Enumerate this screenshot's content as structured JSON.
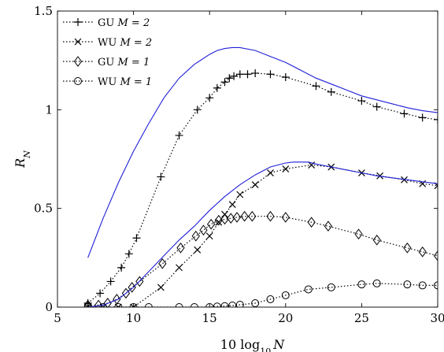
{
  "chart_data": {
    "type": "line",
    "title": "",
    "xlabel": "10 log10 N",
    "ylabel": "R_N",
    "xlim": [
      5,
      30
    ],
    "ylim": [
      0,
      1.5
    ],
    "xticks": [
      5,
      10,
      15,
      20,
      25,
      30
    ],
    "xtick_labels": [
      "5",
      "10",
      "15",
      "20",
      "25",
      "30"
    ],
    "yticks": [
      0,
      0.5,
      1,
      1.5
    ],
    "ytick_labels": [
      "0",
      "0.5",
      "1",
      "1.5"
    ],
    "grid": false,
    "legend_position": "top-left",
    "series": [
      {
        "name": "GU M = 2",
        "legend_label": "GU",
        "legend_math": "M = 2",
        "marker": "plus",
        "line": "dotted",
        "color": "#000000",
        "x": [
          7,
          7.8,
          8.5,
          9.2,
          9.7,
          10.2,
          11.8,
          13,
          14.2,
          15,
          15.5,
          16,
          16.3,
          16.6,
          17,
          17.5,
          18,
          19,
          20,
          22,
          23,
          25,
          26,
          27.8,
          29,
          30
        ],
        "y": [
          0.02,
          0.07,
          0.13,
          0.2,
          0.27,
          0.35,
          0.66,
          0.87,
          1,
          1.06,
          1.11,
          1.14,
          1.16,
          1.17,
          1.18,
          1.18,
          1.185,
          1.18,
          1.165,
          1.12,
          1.09,
          1.045,
          1.015,
          0.98,
          0.96,
          0.95
        ]
      },
      {
        "name": "WU M = 2",
        "legend_label": "WU",
        "legend_math": "M = 2",
        "marker": "cross",
        "line": "dotted",
        "color": "#000000",
        "x": [
          7,
          8,
          9,
          10,
          11.8,
          13,
          14.2,
          15,
          15.6,
          16,
          16.5,
          17,
          18,
          19,
          20,
          21.7,
          23,
          25,
          26.2,
          27.8,
          29,
          30
        ],
        "y": [
          0,
          0,
          0,
          0,
          0.1,
          0.2,
          0.29,
          0.36,
          0.43,
          0.47,
          0.52,
          0.57,
          0.62,
          0.68,
          0.7,
          0.72,
          0.71,
          0.68,
          0.665,
          0.645,
          0.625,
          0.615
        ]
      },
      {
        "name": "GU M = 1",
        "legend_label": "GU",
        "legend_math": "M = 1",
        "marker": "diamond",
        "line": "dotted",
        "color": "#000000",
        "x": [
          7,
          7.7,
          8.3,
          8.9,
          9.5,
          9.9,
          10.4,
          11.9,
          13.1,
          14.1,
          14.6,
          15.1,
          15.6,
          16,
          16.4,
          16.8,
          17.3,
          17.8,
          19,
          20,
          21.7,
          22.8,
          24.8,
          26,
          28,
          29,
          30
        ],
        "y": [
          0.01,
          0.01,
          0.02,
          0.04,
          0.07,
          0.1,
          0.13,
          0.22,
          0.3,
          0.36,
          0.39,
          0.42,
          0.44,
          0.445,
          0.45,
          0.455,
          0.46,
          0.46,
          0.46,
          0.455,
          0.43,
          0.41,
          0.37,
          0.34,
          0.3,
          0.28,
          0.26
        ]
      },
      {
        "name": "WU M = 1",
        "legend_label": "WU",
        "legend_math": "M = 1",
        "marker": "circle",
        "line": "dotted",
        "color": "#000000",
        "x": [
          7,
          8,
          9,
          10,
          11,
          13,
          14,
          15,
          15.5,
          16,
          16.5,
          17,
          18,
          19,
          20,
          21.5,
          23,
          25,
          26,
          28,
          29,
          30
        ],
        "y": [
          0,
          0,
          0,
          0,
          0,
          0,
          0,
          0,
          0.003,
          0.005,
          0.008,
          0.012,
          0.02,
          0.04,
          0.06,
          0.09,
          0.1,
          0.115,
          0.12,
          0.115,
          0.11,
          0.11
        ]
      },
      {
        "name": "upper blue curve",
        "in_legend": false,
        "marker": "none",
        "line": "solid",
        "color": "#1f1fd8",
        "x": [
          7,
          8,
          9,
          10,
          11,
          12,
          13,
          14,
          15,
          15.5,
          16,
          16.5,
          17,
          18,
          19,
          20,
          21,
          22,
          23,
          24,
          25,
          26,
          27,
          28,
          29,
          30
        ],
        "y": [
          0.25,
          0.45,
          0.63,
          0.79,
          0.93,
          1.06,
          1.16,
          1.23,
          1.28,
          1.3,
          1.31,
          1.315,
          1.315,
          1.3,
          1.27,
          1.24,
          1.2,
          1.16,
          1.13,
          1.1,
          1.07,
          1.05,
          1.03,
          1.01,
          0.995,
          0.985
        ]
      },
      {
        "name": "lower blue curve",
        "in_legend": false,
        "marker": "none",
        "line": "solid",
        "color": "#1f1fd8",
        "x": [
          7,
          8,
          9,
          10,
          11,
          12,
          13,
          14,
          15,
          16,
          17,
          18,
          19,
          20,
          20.5,
          21,
          21.5,
          22,
          23,
          24,
          25,
          26,
          27,
          28,
          29,
          30
        ],
        "y": [
          0,
          0.01,
          0.04,
          0.1,
          0.18,
          0.26,
          0.34,
          0.41,
          0.49,
          0.56,
          0.62,
          0.67,
          0.71,
          0.73,
          0.735,
          0.735,
          0.735,
          0.725,
          0.71,
          0.695,
          0.68,
          0.665,
          0.655,
          0.645,
          0.635,
          0.625
        ]
      }
    ]
  }
}
